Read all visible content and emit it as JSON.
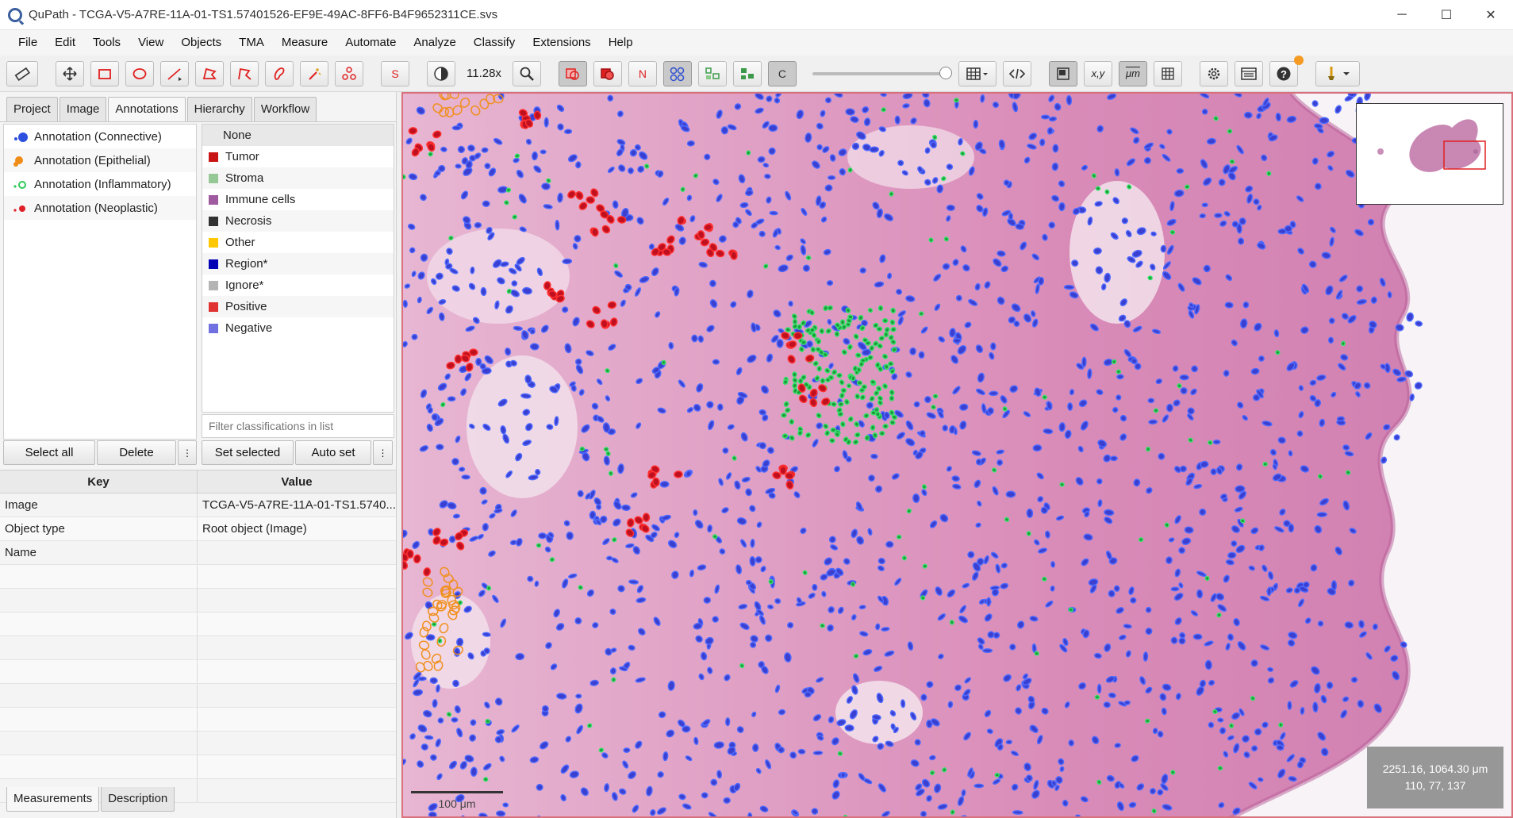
{
  "window": {
    "title": "QuPath - TCGA-V5-A7RE-11A-01-TS1.57401526-EF9E-49AC-8FF6-B4F9652311CE.svs",
    "minimize": "─",
    "maximize": "☐",
    "close": "✕"
  },
  "menu": [
    "File",
    "Edit",
    "Tools",
    "View",
    "Objects",
    "TMA",
    "Measure",
    "Automate",
    "Analyze",
    "Classify",
    "Extensions",
    "Help"
  ],
  "toolbar": {
    "zoom": "11.28x",
    "s_label": "S",
    "n_label": "N",
    "c_label": "C",
    "xy_label": "x,y",
    "um_label": "μm"
  },
  "tabs": [
    "Project",
    "Image",
    "Annotations",
    "Hierarchy",
    "Workflow"
  ],
  "annotations": [
    {
      "label": "Annotation (Connective)",
      "color": "#2d4fe0"
    },
    {
      "label": "Annotation (Epithelial)",
      "color": "#f08c18"
    },
    {
      "label": "Annotation (Inflammatory)",
      "color": "#2fc95a"
    },
    {
      "label": "Annotation (Neoplastic)",
      "color": "#e0202a"
    }
  ],
  "classifications": [
    {
      "label": "None",
      "color": ""
    },
    {
      "label": "Tumor",
      "color": "#c81414"
    },
    {
      "label": "Stroma",
      "color": "#96c896"
    },
    {
      "label": "Immune cells",
      "color": "#a05aa0"
    },
    {
      "label": "Necrosis",
      "color": "#323232"
    },
    {
      "label": "Other",
      "color": "#ffc800"
    },
    {
      "label": "Region*",
      "color": "#0000b4"
    },
    {
      "label": "Ignore*",
      "color": "#b4b4b4"
    },
    {
      "label": "Positive",
      "color": "#e03232"
    },
    {
      "label": "Negative",
      "color": "#7070e0"
    }
  ],
  "filter_placeholder": "Filter classifications in list",
  "buttons": {
    "select_all": "Select all",
    "delete": "Delete",
    "more": "⋮",
    "set_selected": "Set selected",
    "auto_set": "Auto set"
  },
  "table": {
    "key_header": "Key",
    "value_header": "Value",
    "rows": [
      {
        "key": "Image",
        "value": "TCGA-V5-A7RE-11A-01-TS1.5740..."
      },
      {
        "key": "Object type",
        "value": "Root object (Image)"
      },
      {
        "key": "Name",
        "value": ""
      }
    ]
  },
  "bottom_tabs": [
    "Measurements",
    "Description"
  ],
  "viewer": {
    "scale_label": "100 μm",
    "coords_line1": "2251.16, 1064.30 μm",
    "coords_line2": "110, 77, 137"
  }
}
